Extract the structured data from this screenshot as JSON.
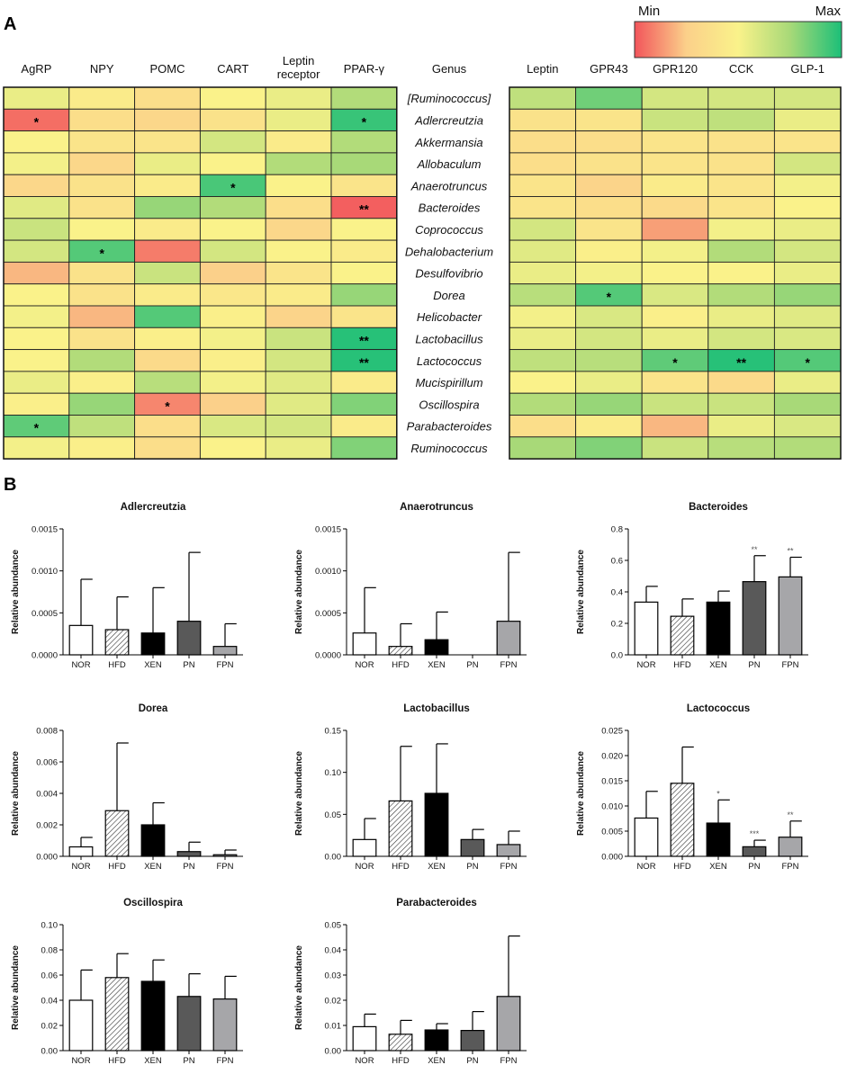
{
  "panel_labels": {
    "a": "A",
    "b": "B"
  },
  "legend": {
    "min": "Min",
    "max": "Max",
    "colors": [
      "#f2555b",
      "#fbd08a",
      "#faf28a",
      "#a8d978",
      "#1cbf78"
    ]
  },
  "chart_data": [
    {
      "type": "heatmap",
      "title": "",
      "left_columns": [
        "AgRP",
        "NPY",
        "POMC",
        "CART",
        "Leptin\nreceptor",
        "PPAR-γ"
      ],
      "right_columns": [
        "Leptin",
        "GPR43",
        "GPR120",
        "CCK",
        "GLP-1"
      ],
      "genus_header": "Genus",
      "rows": [
        "[Ruminococcus]",
        "Adlercreutzia",
        "Akkermansia",
        "Allobaculum",
        "Anaerotruncus",
        "Bacteroides",
        "Coprococcus",
        "Dehalobacterium",
        "Desulfovibrio",
        "Dorea",
        "Helicobacter",
        "Lactobacillus",
        "Lactococcus",
        "Mucispirillum",
        "Oscillospira",
        "Parabacteroides",
        "Ruminococcus"
      ],
      "value_scale": "0 = Min, 1 = Max",
      "left_values": [
        [
          0.55,
          0.45,
          0.35,
          0.5,
          0.55,
          0.72
        ],
        [
          0.05,
          0.35,
          0.3,
          0.38,
          0.55,
          0.95
        ],
        [
          0.5,
          0.4,
          0.4,
          0.62,
          0.45,
          0.72
        ],
        [
          0.52,
          0.3,
          0.55,
          0.5,
          0.72,
          0.75
        ],
        [
          0.3,
          0.38,
          0.45,
          0.92,
          0.5,
          0.4
        ],
        [
          0.58,
          0.38,
          0.78,
          0.72,
          0.35,
          0.02
        ],
        [
          0.65,
          0.5,
          0.45,
          0.5,
          0.3,
          0.5
        ],
        [
          0.62,
          0.9,
          0.08,
          0.62,
          0.5,
          0.45
        ],
        [
          0.2,
          0.38,
          0.65,
          0.25,
          0.4,
          0.5
        ],
        [
          0.5,
          0.38,
          0.45,
          0.42,
          0.45,
          0.78
        ],
        [
          0.52,
          0.2,
          0.9,
          0.48,
          0.28,
          0.4
        ],
        [
          0.5,
          0.38,
          0.48,
          0.52,
          0.65,
          0.98
        ],
        [
          0.5,
          0.72,
          0.32,
          0.48,
          0.62,
          0.98
        ],
        [
          0.55,
          0.48,
          0.7,
          0.52,
          0.58,
          0.45
        ],
        [
          0.48,
          0.78,
          0.1,
          0.25,
          0.58,
          0.82
        ],
        [
          0.88,
          0.68,
          0.35,
          0.6,
          0.62,
          0.45
        ],
        [
          0.52,
          0.48,
          0.35,
          0.5,
          0.55,
          0.82
        ]
      ],
      "right_values": [
        [
          0.68,
          0.85,
          0.62,
          0.62,
          0.62
        ],
        [
          0.38,
          0.4,
          0.65,
          0.68,
          0.55
        ],
        [
          0.35,
          0.35,
          0.4,
          0.38,
          0.4
        ],
        [
          0.35,
          0.38,
          0.4,
          0.38,
          0.62
        ],
        [
          0.4,
          0.28,
          0.45,
          0.4,
          0.52
        ],
        [
          0.4,
          0.35,
          0.32,
          0.4,
          0.5
        ],
        [
          0.62,
          0.4,
          0.15,
          0.52,
          0.55
        ],
        [
          0.58,
          0.48,
          0.52,
          0.72,
          0.62
        ],
        [
          0.55,
          0.52,
          0.5,
          0.5,
          0.55
        ],
        [
          0.7,
          0.9,
          0.6,
          0.72,
          0.78
        ],
        [
          0.52,
          0.6,
          0.48,
          0.55,
          0.58
        ],
        [
          0.55,
          0.62,
          0.55,
          0.62,
          0.6
        ],
        [
          0.68,
          0.7,
          0.88,
          0.98,
          0.9
        ],
        [
          0.5,
          0.55,
          0.4,
          0.32,
          0.55
        ],
        [
          0.72,
          0.78,
          0.65,
          0.65,
          0.75
        ],
        [
          0.35,
          0.45,
          0.2,
          0.55,
          0.6
        ],
        [
          0.75,
          0.82,
          0.65,
          0.7,
          0.72
        ]
      ],
      "left_stars": [
        {
          "row": 1,
          "col": 0,
          "label": "*"
        },
        {
          "row": 1,
          "col": 5,
          "label": "*"
        },
        {
          "row": 4,
          "col": 3,
          "label": "*"
        },
        {
          "row": 5,
          "col": 5,
          "label": "**"
        },
        {
          "row": 7,
          "col": 1,
          "label": "*"
        },
        {
          "row": 11,
          "col": 5,
          "label": "**"
        },
        {
          "row": 12,
          "col": 5,
          "label": "**"
        },
        {
          "row": 14,
          "col": 2,
          "label": "*"
        },
        {
          "row": 15,
          "col": 0,
          "label": "*"
        }
      ],
      "right_stars": [
        {
          "row": 9,
          "col": 1,
          "label": "*"
        },
        {
          "row": 12,
          "col": 2,
          "label": "*"
        },
        {
          "row": 12,
          "col": 3,
          "label": "**"
        },
        {
          "row": 12,
          "col": 4,
          "label": "*"
        }
      ]
    },
    {
      "type": "bar",
      "title": "Adlercreutzia",
      "ylabel": "Relative abundance",
      "categories": [
        "NOR",
        "HFD",
        "XEN",
        "PN",
        "FPN"
      ],
      "values": [
        0.00035,
        0.0003,
        0.00026,
        0.0004,
        0.0001
      ],
      "errors": [
        0.00055,
        0.00039,
        0.00054,
        0.00082,
        0.00027
      ],
      "ylim": [
        0,
        0.0015
      ],
      "yticks": [
        "0.0000",
        "0.0005",
        "0.0010",
        "0.0015"
      ],
      "ytick_values": [
        0,
        0.0005,
        0.001,
        0.0015
      ],
      "significance": [
        "",
        "",
        "",
        "",
        ""
      ]
    },
    {
      "type": "bar",
      "title": "Anaerotruncus",
      "ylabel": "Relative abundance",
      "categories": [
        "NOR",
        "HFD",
        "XEN",
        "PN",
        "FPN"
      ],
      "values": [
        0.00026,
        0.0001,
        0.00018,
        0,
        0.0004
      ],
      "errors": [
        0.00054,
        0.00027,
        0.00033,
        0,
        0.00082
      ],
      "ylim": [
        0,
        0.0015
      ],
      "yticks": [
        "0.0000",
        "0.0005",
        "0.0010",
        "0.0015"
      ],
      "ytick_values": [
        0,
        0.0005,
        0.001,
        0.0015
      ],
      "significance": [
        "",
        "",
        "",
        "",
        ""
      ]
    },
    {
      "type": "bar",
      "title": "Bacteroides",
      "ylabel": "Relative abundance",
      "categories": [
        "NOR",
        "HFD",
        "XEN",
        "PN",
        "FPN"
      ],
      "values": [
        0.335,
        0.245,
        0.335,
        0.465,
        0.495
      ],
      "errors": [
        0.1,
        0.11,
        0.07,
        0.165,
        0.125
      ],
      "ylim": [
        0,
        0.8
      ],
      "yticks": [
        "0.0",
        "0.2",
        "0.4",
        "0.6",
        "0.8"
      ],
      "ytick_values": [
        0,
        0.2,
        0.4,
        0.6,
        0.8
      ],
      "significance": [
        "",
        "",
        "",
        "**",
        "**"
      ]
    },
    {
      "type": "bar",
      "title": "Dorea",
      "ylabel": "Relative abundance",
      "categories": [
        "NOR",
        "HFD",
        "XEN",
        "PN",
        "FPN"
      ],
      "values": [
        0.0006,
        0.0029,
        0.002,
        0.0003,
        0.0001
      ],
      "errors": [
        0.0006,
        0.0043,
        0.0014,
        0.0006,
        0.0003
      ],
      "ylim": [
        0,
        0.008
      ],
      "yticks": [
        "0.000",
        "0.002",
        "0.004",
        "0.006",
        "0.008"
      ],
      "ytick_values": [
        0,
        0.002,
        0.004,
        0.006,
        0.008
      ],
      "significance": [
        "",
        "",
        "",
        "",
        ""
      ]
    },
    {
      "type": "bar",
      "title": "Lactobacillus",
      "ylabel": "Relative abundance",
      "categories": [
        "NOR",
        "HFD",
        "XEN",
        "PN",
        "FPN"
      ],
      "values": [
        0.02,
        0.066,
        0.075,
        0.02,
        0.014
      ],
      "errors": [
        0.025,
        0.065,
        0.059,
        0.012,
        0.016
      ],
      "ylim": [
        0,
        0.15
      ],
      "yticks": [
        "0.00",
        "0.05",
        "0.10",
        "0.15"
      ],
      "ytick_values": [
        0,
        0.05,
        0.1,
        0.15
      ],
      "significance": [
        "",
        "",
        "",
        "",
        ""
      ]
    },
    {
      "type": "bar",
      "title": "Lactococcus",
      "ylabel": "Relative abundance",
      "categories": [
        "NOR",
        "HFD",
        "XEN",
        "PN",
        "FPN"
      ],
      "values": [
        0.0076,
        0.0145,
        0.0066,
        0.0019,
        0.0038
      ],
      "errors": [
        0.0053,
        0.0072,
        0.0046,
        0.0013,
        0.0032
      ],
      "ylim": [
        0,
        0.025
      ],
      "yticks": [
        "0.000",
        "0.005",
        "0.010",
        "0.015",
        "0.020",
        "0.025"
      ],
      "ytick_values": [
        0,
        0.005,
        0.01,
        0.015,
        0.02,
        0.025
      ],
      "significance": [
        "",
        "",
        "*",
        "***",
        "**"
      ]
    },
    {
      "type": "bar",
      "title": "Oscillospira",
      "ylabel": "Relative abundance",
      "categories": [
        "NOR",
        "HFD",
        "XEN",
        "PN",
        "FPN"
      ],
      "values": [
        0.04,
        0.058,
        0.055,
        0.043,
        0.041
      ],
      "errors": [
        0.024,
        0.019,
        0.017,
        0.018,
        0.018
      ],
      "ylim": [
        0,
        0.1
      ],
      "yticks": [
        "0.00",
        "0.02",
        "0.04",
        "0.06",
        "0.08",
        "0.10"
      ],
      "ytick_values": [
        0,
        0.02,
        0.04,
        0.06,
        0.08,
        0.1
      ],
      "significance": [
        "",
        "",
        "",
        "",
        ""
      ]
    },
    {
      "type": "bar",
      "title": "Parabacteroides",
      "ylabel": "Relative abundance",
      "categories": [
        "NOR",
        "HFD",
        "XEN",
        "PN",
        "FPN"
      ],
      "values": [
        0.0095,
        0.0065,
        0.0082,
        0.008,
        0.0215
      ],
      "errors": [
        0.005,
        0.0055,
        0.0025,
        0.0075,
        0.024
      ],
      "ylim": [
        0,
        0.05
      ],
      "yticks": [
        "0.00",
        "0.01",
        "0.02",
        "0.03",
        "0.04",
        "0.05"
      ],
      "ytick_values": [
        0,
        0.01,
        0.02,
        0.03,
        0.04,
        0.05
      ],
      "significance": [
        "",
        "",
        "",
        "",
        ""
      ]
    }
  ]
}
